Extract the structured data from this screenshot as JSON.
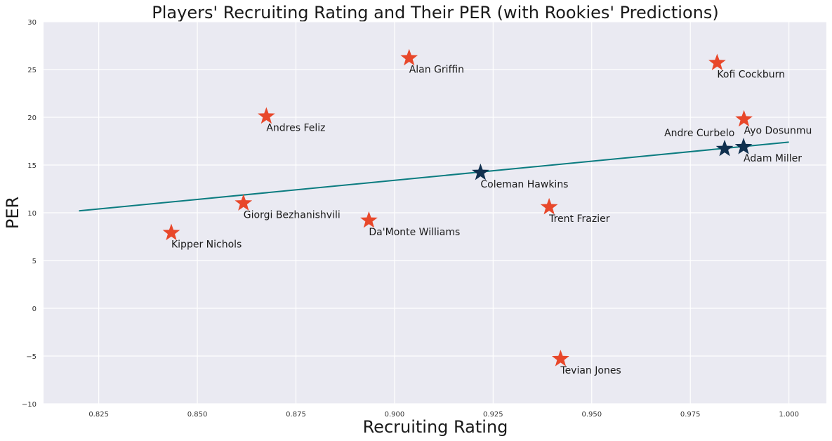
{
  "colors": {
    "background": "#eaeaf2",
    "grid": "#ffffff",
    "rookie_star": "#e8472a",
    "veteran_star": "#10304f",
    "trend_line": "#0b7c80"
  },
  "chart_data": {
    "type": "scatter",
    "title": "Players' Recruiting Rating and Their PER (with Rookies' Predictions)",
    "xlabel": "Recruiting Rating",
    "ylabel": "PER",
    "xlim": [
      0.811,
      1.0095
    ],
    "ylim": [
      -10,
      30
    ],
    "grid": true,
    "marker": "star-icon",
    "xticks": [
      0.825,
      0.85,
      0.875,
      0.9,
      0.925,
      0.95,
      0.975,
      1.0
    ],
    "xtick_labels": [
      "0.825",
      "0.850",
      "0.875",
      "0.900",
      "0.925",
      "0.950",
      "0.975",
      "1.000"
    ],
    "yticks": [
      -10,
      -5,
      0,
      5,
      10,
      15,
      20,
      25,
      30
    ],
    "ytick_labels": [
      "−10",
      "−5",
      "0",
      "5",
      "10",
      "15",
      "20",
      "25",
      "30"
    ],
    "points": [
      {
        "name": "Alan Griffin",
        "x": 0.9037,
        "y": 26.2,
        "group": "rookie",
        "label_pos": "below"
      },
      {
        "name": "Kofi Cockburn",
        "x": 0.9818,
        "y": 25.7,
        "group": "rookie",
        "label_pos": "below"
      },
      {
        "name": "Andres Feliz",
        "x": 0.8675,
        "y": 20.1,
        "group": "rookie",
        "label_pos": "below"
      },
      {
        "name": "Ayo Dosunmu",
        "x": 0.9886,
        "y": 19.8,
        "group": "rookie",
        "label_pos": "below"
      },
      {
        "name": "Andre Curbelo",
        "x": 0.9837,
        "y": 16.7,
        "group": "veteran",
        "label_pos": "above-left"
      },
      {
        "name": "Adam Miller",
        "x": 0.9885,
        "y": 16.9,
        "group": "veteran",
        "label_pos": "below"
      },
      {
        "name": "Coleman Hawkins",
        "x": 0.9218,
        "y": 14.2,
        "group": "veteran",
        "label_pos": "below"
      },
      {
        "name": "Giorgi Bezhanishvili",
        "x": 0.8617,
        "y": 11.0,
        "group": "rookie",
        "label_pos": "below"
      },
      {
        "name": "Trent Frazier",
        "x": 0.9392,
        "y": 10.6,
        "group": "rookie",
        "label_pos": "below"
      },
      {
        "name": "Da'Monte Williams",
        "x": 0.8935,
        "y": 9.2,
        "group": "rookie",
        "label_pos": "below"
      },
      {
        "name": "Kipper Nichols",
        "x": 0.8434,
        "y": 7.9,
        "group": "rookie",
        "label_pos": "below"
      },
      {
        "name": "Tevian Jones",
        "x": 0.9421,
        "y": -5.3,
        "group": "rookie",
        "label_pos": "below"
      }
    ],
    "trend_line": {
      "x": [
        0.82,
        1.0
      ],
      "y": [
        10.2,
        17.4
      ]
    }
  }
}
